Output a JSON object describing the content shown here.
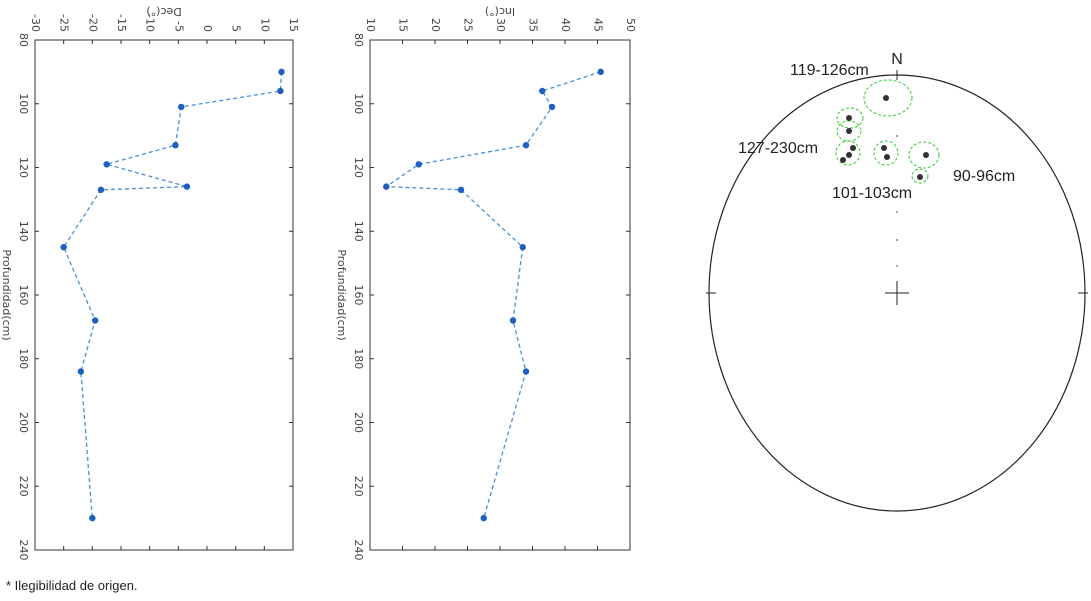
{
  "note": "* Ilegibilidad de origen.",
  "chart_data": [
    {
      "type": "line",
      "title": "",
      "xlabel": "Dec(°)",
      "ylabel": "Profundidad(cm)",
      "xlim": [
        -30,
        15
      ],
      "ylim": [
        80,
        240
      ],
      "y_inverted": true,
      "xticks": [
        "-30",
        "-25",
        "-20",
        "-15",
        "-10",
        "-5",
        "0",
        "5",
        "10",
        "15"
      ],
      "yticks": [
        "80",
        "100",
        "120",
        "140",
        "160",
        "180",
        "200",
        "220",
        "240"
      ],
      "series": [
        {
          "color": "#1f5fbf",
          "points": [
            {
              "x": 13.0,
              "y": 90
            },
            {
              "x": 12.8,
              "y": 96
            },
            {
              "x": -4.5,
              "y": 101
            },
            {
              "x": -5.5,
              "y": 113
            },
            {
              "x": -17.5,
              "y": 119
            },
            {
              "x": -3.5,
              "y": 126
            },
            {
              "x": -18.5,
              "y": 127
            },
            {
              "x": -25.0,
              "y": 145
            },
            {
              "x": -19.5,
              "y": 168
            },
            {
              "x": -22.0,
              "y": 184
            },
            {
              "x": -20.0,
              "y": 230
            }
          ]
        }
      ]
    },
    {
      "type": "line",
      "title": "",
      "xlabel": "Inc(°)",
      "ylabel": "Profundidad(cm)",
      "xlim": [
        10,
        50
      ],
      "ylim": [
        80,
        240
      ],
      "y_inverted": true,
      "xticks": [
        "10",
        "15",
        "20",
        "25",
        "30",
        "35",
        "40",
        "45",
        "50"
      ],
      "yticks": [
        "80",
        "100",
        "120",
        "140",
        "160",
        "180",
        "200",
        "220",
        "240"
      ],
      "series": [
        {
          "color": "#1f5fbf",
          "points": [
            {
              "x": 45.5,
              "y": 90
            },
            {
              "x": 36.5,
              "y": 96
            },
            {
              "x": 38.0,
              "y": 101
            },
            {
              "x": 34.0,
              "y": 113
            },
            {
              "x": 17.5,
              "y": 119
            },
            {
              "x": 12.5,
              "y": 126
            },
            {
              "x": 24.0,
              "y": 127
            },
            {
              "x": 33.5,
              "y": 145
            },
            {
              "x": 32.0,
              "y": 168
            },
            {
              "x": 34.0,
              "y": 184
            },
            {
              "x": 27.5,
              "y": 230
            }
          ]
        }
      ]
    },
    {
      "type": "scatter",
      "title": "",
      "north_label": "N",
      "groups": [
        {
          "label": "119-126cm"
        },
        {
          "label": "127-230cm"
        },
        {
          "label": "101-103cm"
        },
        {
          "label": "90-96cm"
        }
      ]
    }
  ]
}
